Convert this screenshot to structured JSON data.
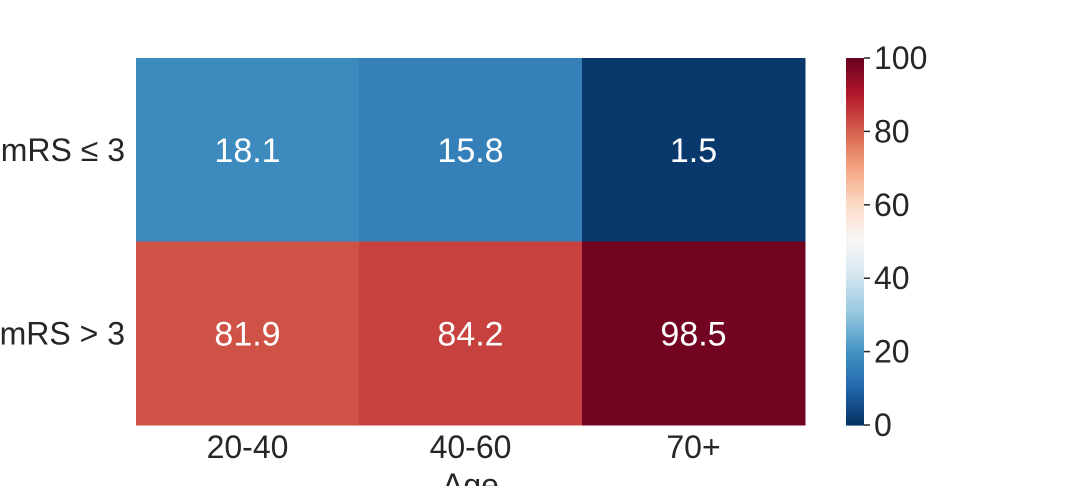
{
  "chart_data": {
    "type": "heatmap",
    "title": "",
    "xlabel": "Age",
    "ylabel": "",
    "x_categories": [
      "20-40",
      "40-60",
      "70+"
    ],
    "y_categories": [
      "mRS ≤ 3",
      "mRS > 3"
    ],
    "values": [
      [
        18.1,
        15.8,
        1.5
      ],
      [
        81.9,
        84.2,
        98.5
      ]
    ],
    "value_labels": [
      [
        "18.1",
        "15.8",
        "1.5"
      ],
      [
        "81.9",
        "84.2",
        "98.5"
      ]
    ],
    "colorbar": {
      "colormap": "RdBu_r",
      "range": [
        0,
        100
      ],
      "ticks": [
        "0",
        "20",
        "40",
        "60",
        "80",
        "100"
      ]
    }
  }
}
